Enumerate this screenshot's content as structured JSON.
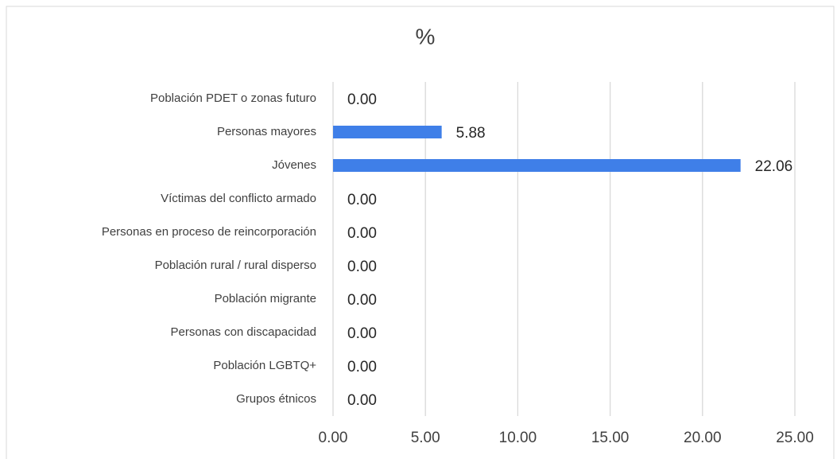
{
  "chart_data": {
    "type": "bar",
    "orientation": "horizontal",
    "title": "%",
    "categories": [
      "Población PDET o zonas futuro",
      "Personas mayores",
      "Jóvenes",
      "Víctimas del conflicto armado",
      "Personas en proceso de reincorporación",
      "Población rural / rural disperso",
      "Población migrante",
      "Personas con discapacidad",
      "Población LGBTQ+",
      "Grupos étnicos"
    ],
    "values": [
      0,
      5.88,
      22.06,
      0,
      0,
      0,
      0,
      0,
      0,
      0
    ],
    "value_labels": [
      "0.00",
      "5.88",
      "22.06",
      "0.00",
      "0.00",
      "0.00",
      "0.00",
      "0.00",
      "0.00",
      "0.00"
    ],
    "color": "#3f7fe8",
    "xlim": [
      0,
      25
    ],
    "xticks": [
      {
        "value": 0,
        "label": "0.00"
      },
      {
        "value": 5,
        "label": "5.00"
      },
      {
        "value": 10,
        "label": "10.00"
      },
      {
        "value": 15,
        "label": "15.00"
      },
      {
        "value": 20,
        "label": "20.00"
      },
      {
        "value": 25,
        "label": "25.00"
      }
    ],
    "grid": true
  }
}
